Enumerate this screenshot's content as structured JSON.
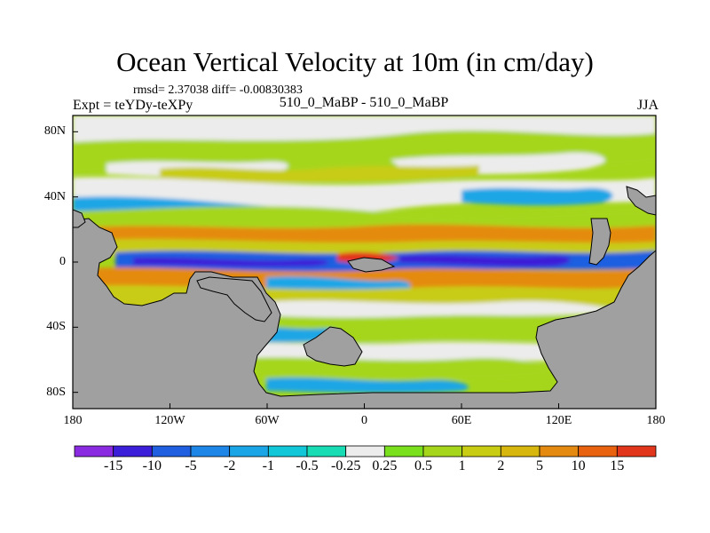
{
  "title": "Ocean Vertical Velocity at 10m (in cm/day)",
  "stats": "rmsd= 2.37038 diff= -0.00830383",
  "left_label": "Expt = teYDy-teXPy",
  "center_label": "510_0_MaBP - 510_0_MaBP",
  "right_label": "JJA",
  "lat_ticks": [
    {
      "label": "80N",
      "lat": 80
    },
    {
      "label": "40N",
      "lat": 40
    },
    {
      "label": "0",
      "lat": 0
    },
    {
      "label": "40S",
      "lat": -40
    },
    {
      "label": "80S",
      "lat": -80
    }
  ],
  "lon_ticks": [
    {
      "label": "180",
      "lon": -180
    },
    {
      "label": "120W",
      "lon": -120
    },
    {
      "label": "60W",
      "lon": -60
    },
    {
      "label": "0",
      "lon": 0
    },
    {
      "label": "60E",
      "lon": 60
    },
    {
      "label": "120E",
      "lon": 120
    },
    {
      "label": "180",
      "lon": 180
    }
  ],
  "colorbar": {
    "colors": [
      "#8a2be2",
      "#3c1fd8",
      "#1f5fe0",
      "#1e86e6",
      "#1aa6e6",
      "#12c8d8",
      "#17dcb4",
      "#ececec",
      "#7ae01e",
      "#a6d61c",
      "#c8cc12",
      "#d7b60e",
      "#e48a10",
      "#e86210",
      "#e2361c"
    ],
    "labels": [
      "-15",
      "-10",
      "-5",
      "-2",
      "-1",
      "-0.5",
      "-0.25",
      "0.25",
      "0.5",
      "1",
      "2",
      "5",
      "10",
      "15"
    ]
  },
  "colors": {
    "land": "#a0a0a0",
    "white": "#ececec",
    "green": "#a6d61c",
    "yellow_green": "#c8cc12",
    "orange": "#e48a10",
    "red": "#e2361c",
    "blue": "#1f5fe0",
    "dark_blue": "#3c1fd8",
    "cyan": "#1aa6e6"
  }
}
